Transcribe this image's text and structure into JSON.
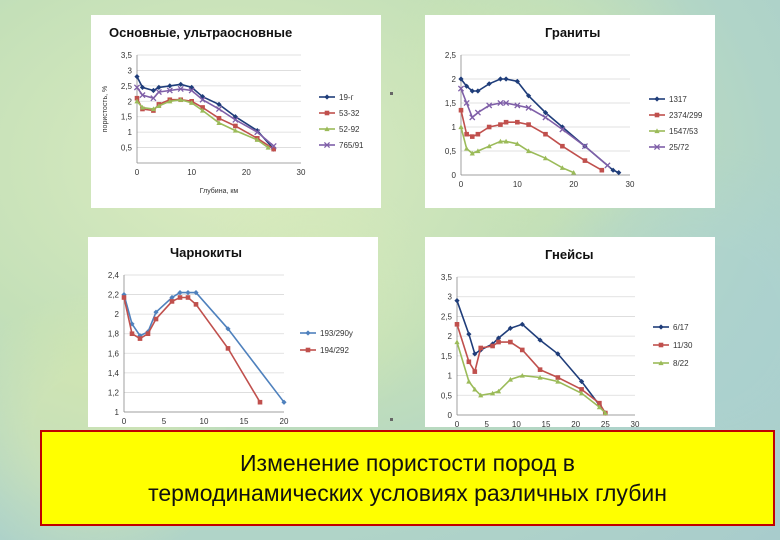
{
  "banner": {
    "line1": "Изменение пористости пород в",
    "line2": "термодинамических условиях различных глубин"
  },
  "chart_data": [
    {
      "type": "line",
      "title": "Основные, ультраосновные",
      "xlabel": "Глубина, км",
      "ylabel": "пористость, %",
      "xlim": [
        0,
        30
      ],
      "ylim": [
        0,
        3.5
      ],
      "xticks": [
        0,
        10,
        20,
        30
      ],
      "yticks": [
        0.5,
        1,
        1.5,
        2,
        2.5,
        3,
        3.5
      ],
      "y_tick_labels": [
        "0,5",
        "1",
        "1,5",
        "2",
        "2,5",
        "3",
        "3,5"
      ],
      "grid": "horizontal",
      "legend": "right",
      "series": [
        {
          "name": "19-г",
          "color": "#1f3d7a",
          "marker": "diamond",
          "x": [
            0,
            1,
            3,
            4,
            6,
            8,
            10,
            12,
            15,
            18,
            22,
            25
          ],
          "y": [
            2.8,
            2.45,
            2.35,
            2.45,
            2.5,
            2.55,
            2.45,
            2.15,
            1.9,
            1.5,
            1.05,
            0.45
          ]
        },
        {
          "name": "53-32",
          "color": "#c0504d",
          "marker": "square",
          "x": [
            0,
            1,
            3,
            4,
            6,
            8,
            10,
            12,
            15,
            18,
            22,
            25
          ],
          "y": [
            2.1,
            1.75,
            1.7,
            1.9,
            2.05,
            2.05,
            2.0,
            1.8,
            1.45,
            1.2,
            0.8,
            0.45
          ]
        },
        {
          "name": "52-92",
          "color": "#9bbb59",
          "marker": "triangle",
          "x": [
            0,
            1,
            3,
            4,
            6,
            8,
            10,
            12,
            15,
            18,
            22,
            24
          ],
          "y": [
            2.0,
            1.8,
            1.75,
            1.85,
            2.0,
            2.05,
            1.95,
            1.7,
            1.3,
            1.05,
            0.75,
            0.5
          ]
        },
        {
          "name": "765/91",
          "color": "#7f5fa8",
          "marker": "x",
          "x": [
            0,
            1,
            3,
            4,
            6,
            8,
            10,
            12,
            15,
            18,
            22,
            25
          ],
          "y": [
            2.45,
            2.2,
            2.1,
            2.3,
            2.35,
            2.4,
            2.35,
            2.05,
            1.75,
            1.4,
            1.0,
            0.55
          ]
        }
      ]
    },
    {
      "type": "line",
      "title": "Граниты",
      "xlim": [
        0,
        30
      ],
      "ylim": [
        0,
        2.5
      ],
      "xticks": [
        0,
        10,
        20,
        30
      ],
      "yticks": [
        0,
        0.5,
        1,
        1.5,
        2,
        2.5
      ],
      "y_tick_labels": [
        "0",
        "0,5",
        "1",
        "1,5",
        "2",
        "2,5"
      ],
      "grid": "horizontal",
      "legend": "right",
      "series": [
        {
          "name": "1317",
          "color": "#1f3d7a",
          "marker": "diamond",
          "x": [
            0,
            1,
            2,
            3,
            5,
            7,
            8,
            10,
            12,
            15,
            18,
            22,
            27,
            28
          ],
          "y": [
            2.0,
            1.85,
            1.75,
            1.75,
            1.9,
            2.0,
            2.0,
            1.95,
            1.65,
            1.3,
            1.0,
            0.6,
            0.1,
            0.05
          ]
        },
        {
          "name": "2374/299",
          "color": "#c0504d",
          "marker": "square",
          "x": [
            0,
            1,
            2,
            3,
            5,
            7,
            8,
            10,
            12,
            15,
            18,
            22,
            25
          ],
          "y": [
            1.35,
            0.85,
            0.8,
            0.85,
            1.0,
            1.05,
            1.1,
            1.1,
            1.05,
            0.85,
            0.6,
            0.3,
            0.1
          ]
        },
        {
          "name": "1547/53",
          "color": "#9bbb59",
          "marker": "triangle",
          "x": [
            0,
            1,
            2,
            3,
            5,
            7,
            8,
            10,
            12,
            15,
            18,
            20
          ],
          "y": [
            1.0,
            0.55,
            0.45,
            0.5,
            0.6,
            0.7,
            0.7,
            0.65,
            0.5,
            0.35,
            0.15,
            0.05
          ]
        },
        {
          "name": "25/72",
          "color": "#7f5fa8",
          "marker": "x",
          "x": [
            0,
            1,
            2,
            3,
            5,
            7,
            8,
            10,
            12,
            15,
            18,
            22,
            26
          ],
          "y": [
            1.8,
            1.5,
            1.2,
            1.3,
            1.45,
            1.5,
            1.5,
            1.45,
            1.4,
            1.2,
            0.95,
            0.6,
            0.2
          ]
        }
      ]
    },
    {
      "type": "line",
      "title": "Чарнокиты",
      "xlim": [
        0,
        20
      ],
      "ylim": [
        1,
        2.4
      ],
      "xticks": [
        0,
        5,
        10,
        15,
        20
      ],
      "yticks": [
        1,
        1.2,
        1.4,
        1.6,
        1.8,
        2,
        2.2,
        2.4
      ],
      "y_tick_labels": [
        "1",
        "1,2",
        "1,4",
        "1,6",
        "1,8",
        "2",
        "2,2",
        "2,4"
      ],
      "grid": "horizontal",
      "legend": "right",
      "series": [
        {
          "name": "193/290у",
          "color": "#4f81bd",
          "marker": "diamond",
          "x": [
            0,
            1,
            2,
            3,
            4,
            6,
            7,
            8,
            9,
            13,
            20
          ],
          "y": [
            2.2,
            1.9,
            1.78,
            1.82,
            2.02,
            2.17,
            2.22,
            2.22,
            2.22,
            1.85,
            1.1
          ]
        },
        {
          "name": "194/292",
          "color": "#c0504d",
          "marker": "square",
          "x": [
            0,
            1,
            2,
            3,
            4,
            6,
            7,
            8,
            9,
            13,
            17
          ],
          "y": [
            2.17,
            1.8,
            1.75,
            1.8,
            1.95,
            2.13,
            2.17,
            2.17,
            2.1,
            1.65,
            1.1
          ]
        }
      ]
    },
    {
      "type": "line",
      "title": "Гнейсы",
      "xlim": [
        0,
        30
      ],
      "ylim": [
        0,
        3.5
      ],
      "xticks": [
        0,
        5,
        10,
        15,
        20,
        25,
        30
      ],
      "yticks": [
        0,
        0.5,
        1,
        1.5,
        2,
        2.5,
        3,
        3.5
      ],
      "y_tick_labels": [
        "0",
        "0,5",
        "1",
        "1,5",
        "2",
        "2,5",
        "3",
        "3,5"
      ],
      "grid": "horizontal",
      "legend": "right",
      "series": [
        {
          "name": "6/17",
          "color": "#1f3d7a",
          "marker": "diamond",
          "x": [
            0,
            2,
            3,
            4,
            6,
            7,
            9,
            11,
            14,
            17,
            21,
            24,
            25
          ],
          "y": [
            2.9,
            2.05,
            1.55,
            1.65,
            1.8,
            1.95,
            2.2,
            2.3,
            1.9,
            1.55,
            0.85,
            0.25,
            0.05
          ]
        },
        {
          "name": "11/30",
          "color": "#c0504d",
          "marker": "square",
          "x": [
            0,
            2,
            3,
            4,
            6,
            7,
            9,
            11,
            14,
            17,
            21,
            24,
            25
          ],
          "y": [
            2.3,
            1.35,
            1.1,
            1.7,
            1.75,
            1.85,
            1.85,
            1.65,
            1.15,
            0.95,
            0.65,
            0.3,
            0.05
          ]
        },
        {
          "name": "8/22",
          "color": "#9bbb59",
          "marker": "triangle",
          "x": [
            0,
            2,
            3,
            4,
            6,
            7,
            9,
            11,
            14,
            17,
            21,
            24,
            25
          ],
          "y": [
            1.85,
            0.85,
            0.65,
            0.5,
            0.55,
            0.6,
            0.9,
            1.0,
            0.95,
            0.85,
            0.55,
            0.2,
            0.05
          ]
        }
      ]
    }
  ]
}
